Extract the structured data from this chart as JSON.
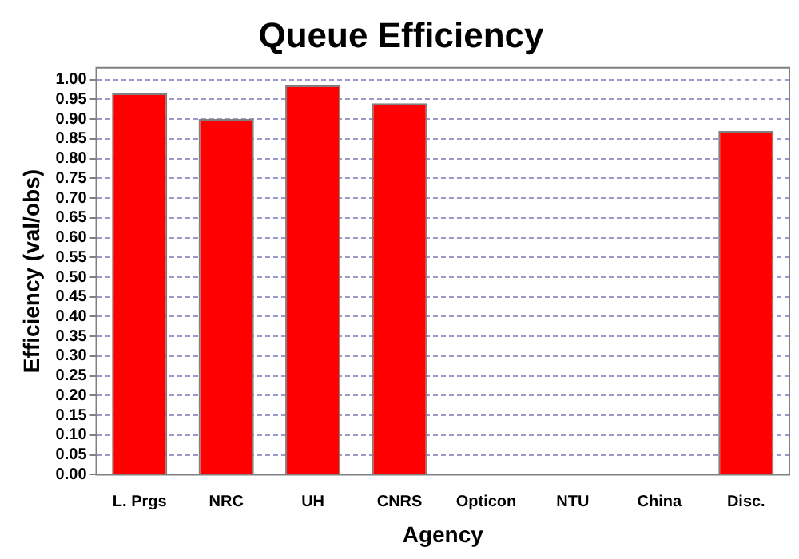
{
  "chart_data": {
    "type": "bar",
    "title": "Queue Efficiency",
    "xlabel": "Agency",
    "ylabel": "Efficiency (val/obs)",
    "categories": [
      "L. Prgs",
      "NRC",
      "UH",
      "CNRS",
      "Opticon",
      "NTU",
      "China",
      "Disc."
    ],
    "values": [
      0.965,
      0.9,
      0.985,
      0.94,
      null,
      null,
      null,
      0.87
    ],
    "color": "#ff0000",
    "ylim": [
      0,
      1.03
    ],
    "yticks": [
      {
        "value": 0,
        "label": "0.00"
      },
      0.05,
      {
        "value": 0.1,
        "label": "0.10"
      },
      0.15,
      {
        "value": 0.2,
        "label": "0.20"
      },
      0.25,
      {
        "value": 0.3,
        "label": "0.30"
      },
      0.35,
      {
        "value": 0.4,
        "label": "0.40"
      },
      0.45,
      {
        "value": 0.5,
        "label": "0.50"
      },
      0.55,
      {
        "value": 0.6,
        "label": "0.60"
      },
      0.65,
      {
        "value": 0.7,
        "label": "0.70"
      },
      0.75,
      {
        "value": 0.8,
        "label": "0.80"
      },
      0.85,
      {
        "value": 0.9,
        "label": "0.90"
      },
      0.95,
      {
        "value": 1,
        "label": "1.00"
      }
    ],
    "grid": "y",
    "legend": false
  }
}
